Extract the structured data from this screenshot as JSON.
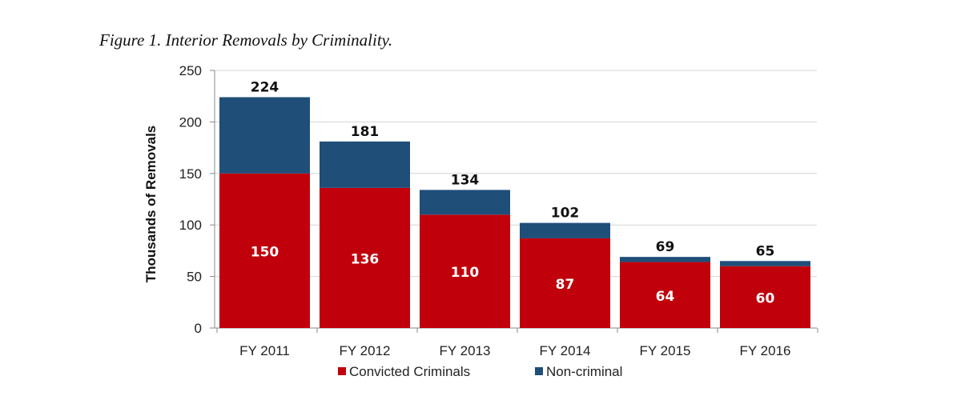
{
  "figure_title": "Figure 1. Interior Removals by Criminality.",
  "chart_data": {
    "type": "bar",
    "stacked": true,
    "title": "Figure 1. Interior Removals by Criminality.",
    "xlabel": "",
    "ylabel": "Thousands of  Removals",
    "ylim": [
      0,
      250
    ],
    "yticks": [
      0,
      50,
      100,
      150,
      200,
      250
    ],
    "grid": true,
    "legend_position": "bottom",
    "categories": [
      "FY 2011",
      "FY 2012",
      "FY 2013",
      "FY 2014",
      "FY 2015",
      "FY 2016"
    ],
    "series": [
      {
        "name": "Convicted Criminals",
        "color": "#c0000b",
        "values": [
          150,
          136,
          110,
          87,
          64,
          60
        ]
      },
      {
        "name": "Non-criminal",
        "color": "#1f4e79",
        "values": [
          74,
          45,
          24,
          15,
          5,
          5
        ]
      }
    ],
    "totals": [
      224,
      181,
      134,
      102,
      69,
      65
    ]
  }
}
